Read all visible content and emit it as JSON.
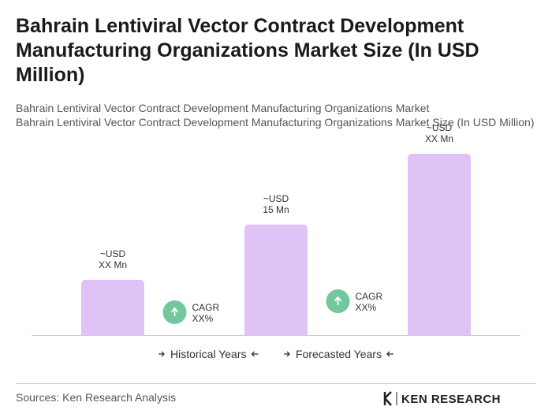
{
  "chart_data": {
    "type": "bar",
    "title": "Bahrain Lentiviral Vector Contract Development Manufacturing Organizations Market Size (In USD Million)",
    "subtitle": [
      "Bahrain Lentiviral Vector Contract Development Manufacturing Organizations Market",
      "Bahrain Lentiviral Vector Contract Development Manufacturing Organizations Market Size (In USD Million)"
    ],
    "categories": [
      null,
      null,
      null
    ],
    "values": [
      7.5,
      15,
      24.6
    ],
    "value_labels": [
      [
        "~USD",
        "XX Mn"
      ],
      [
        "~USD",
        "15 Mn"
      ],
      [
        "~USD",
        "XX Mn"
      ]
    ],
    "color": "#dfc3f7",
    "annotations": [
      {
        "label": "CAGR",
        "value": "XX%"
      },
      {
        "label": "CAGR",
        "value": "XX%"
      }
    ],
    "annotation_color": "#72c79c",
    "legend": [
      "Historical Years",
      "Forecasted Years"
    ],
    "source": "Sources: Ken Research Analysis",
    "logo": "KEN RESEARCH"
  }
}
